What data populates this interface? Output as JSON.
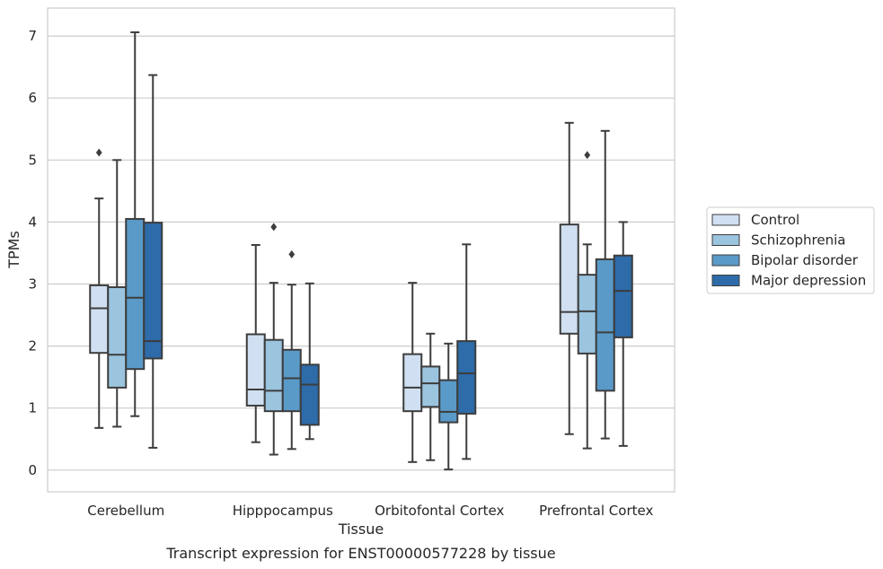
{
  "chart_data": {
    "type": "box",
    "title": "",
    "caption": "Transcript expression for ENST00000577228 by tissue",
    "xlabel": "Tissue",
    "ylabel": "TPMs",
    "ylim": [
      -0.35,
      7.45
    ],
    "yticks": [
      0,
      1,
      2,
      3,
      4,
      5,
      6,
      7
    ],
    "grid": "horizontal",
    "legend_position": "right",
    "categories": [
      "Cerebellum",
      "Hipppocampus",
      "Orbitofontal Cortex",
      "Prefrontal Cortex"
    ],
    "series": [
      {
        "name": "Control",
        "color": "#d0e0f2",
        "boxes": [
          {
            "whisker_low": 0.68,
            "q1": 1.89,
            "median": 2.61,
            "q3": 2.98,
            "whisker_high": 4.38,
            "outliers": [
              5.12
            ]
          },
          {
            "whisker_low": 0.45,
            "q1": 1.04,
            "median": 1.3,
            "q3": 2.19,
            "whisker_high": 3.63,
            "outliers": []
          },
          {
            "whisker_low": 0.13,
            "q1": 0.95,
            "median": 1.33,
            "q3": 1.87,
            "whisker_high": 3.02,
            "outliers": []
          },
          {
            "whisker_low": 0.58,
            "q1": 2.2,
            "median": 2.55,
            "q3": 3.96,
            "whisker_high": 5.6,
            "outliers": []
          }
        ]
      },
      {
        "name": "Schizophrenia",
        "color": "#9bc4df",
        "boxes": [
          {
            "whisker_low": 0.7,
            "q1": 1.33,
            "median": 1.86,
            "q3": 2.95,
            "whisker_high": 5.0,
            "outliers": []
          },
          {
            "whisker_low": 0.25,
            "q1": 0.95,
            "median": 1.28,
            "q3": 2.1,
            "whisker_high": 3.02,
            "outliers": [
              3.92
            ]
          },
          {
            "whisker_low": 0.16,
            "q1": 1.02,
            "median": 1.4,
            "q3": 1.67,
            "whisker_high": 2.2,
            "outliers": []
          },
          {
            "whisker_low": 0.35,
            "q1": 1.88,
            "median": 2.56,
            "q3": 3.15,
            "whisker_high": 3.64,
            "outliers": [
              5.08
            ]
          }
        ]
      },
      {
        "name": "Bipolar disorder",
        "color": "#5a9ac8",
        "boxes": [
          {
            "whisker_low": 0.87,
            "q1": 1.63,
            "median": 2.78,
            "q3": 4.05,
            "whisker_high": 7.06,
            "outliers": []
          },
          {
            "whisker_low": 0.34,
            "q1": 0.95,
            "median": 1.48,
            "q3": 1.94,
            "whisker_high": 2.99,
            "outliers": [
              3.48
            ]
          },
          {
            "whisker_low": 0.01,
            "q1": 0.77,
            "median": 0.94,
            "q3": 1.45,
            "whisker_high": 2.04,
            "outliers": []
          },
          {
            "whisker_low": 0.51,
            "q1": 1.28,
            "median": 2.22,
            "q3": 3.4,
            "whisker_high": 5.47,
            "outliers": []
          }
        ]
      },
      {
        "name": "Major depression",
        "color": "#2d6ba9",
        "boxes": [
          {
            "whisker_low": 0.36,
            "q1": 1.8,
            "median": 2.08,
            "q3": 3.99,
            "whisker_high": 6.37,
            "outliers": []
          },
          {
            "whisker_low": 0.5,
            "q1": 0.73,
            "median": 1.38,
            "q3": 1.7,
            "whisker_high": 3.01,
            "outliers": []
          },
          {
            "whisker_low": 0.18,
            "q1": 0.91,
            "median": 1.56,
            "q3": 2.08,
            "whisker_high": 3.64,
            "outliers": []
          },
          {
            "whisker_low": 0.39,
            "q1": 2.14,
            "median": 2.89,
            "q3": 3.46,
            "whisker_high": 4.0,
            "outliers": []
          }
        ]
      }
    ]
  }
}
